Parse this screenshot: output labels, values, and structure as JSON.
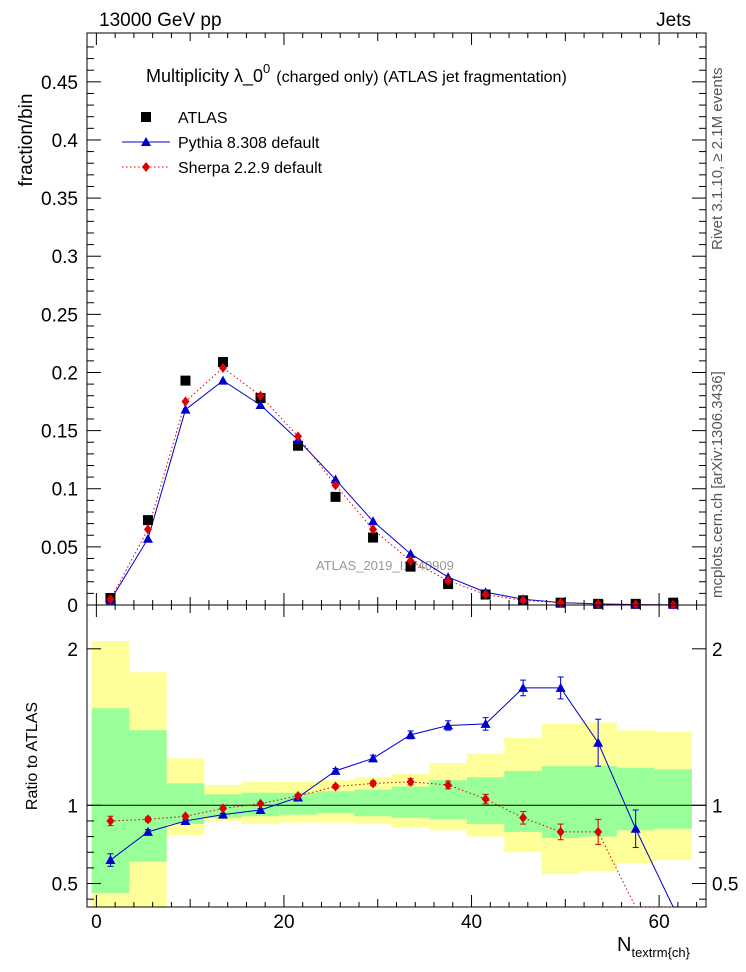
{
  "header": {
    "left": "13000 GeV pp",
    "right": "Jets"
  },
  "side_labels": {
    "top": "Rivet 3.1.10, ≥ 2.1M events",
    "bottom": "mcplots.cern.ch [arXiv:1306.3436]"
  },
  "chart_data": {
    "type": "scatter",
    "title_main": "Multiplicity  λ_0",
    "title_sup": "0",
    "title_suffix": "(charged only) (ATLAS jet fragmentation)",
    "watermark": "ATLAS_2019_I1740909",
    "xlabel_main": "N",
    "xlabel_sub": "textrm{ch}",
    "ylabel_top": "fraction/bin",
    "ylabel_bottom": "Ratio to ATLAS",
    "xlim": [
      -1,
      65
    ],
    "ylim_top": [
      0,
      0.492
    ],
    "ylim_bottom": [
      0.35,
      2.28
    ],
    "x_ticks": [
      0,
      20,
      40,
      60
    ],
    "x_tick_labels": [
      "0",
      "20",
      "40",
      "60"
    ],
    "y_ticks_top": [
      0,
      0.05,
      0.1,
      0.15,
      0.2,
      0.25,
      0.3,
      0.35,
      0.4,
      0.45
    ],
    "y_tick_labels_top": [
      "0",
      "0.05",
      "0.1",
      "0.15",
      "0.2",
      "0.25",
      "0.3",
      "0.35",
      "0.4",
      "0.45"
    ],
    "y_ticks_bottom": [
      0.5,
      1,
      2
    ],
    "y_tick_labels_bottom": [
      "0.5",
      "1",
      "2"
    ],
    "bin_edges": [
      -0.5,
      3.5,
      7.5,
      11.5,
      15.5,
      19.5,
      23.5,
      27.5,
      31.5,
      35.5,
      39.5,
      43.5,
      47.5,
      51.5,
      55.5,
      59.5,
      63.5
    ],
    "x": [
      1.5,
      5.5,
      9.5,
      13.5,
      17.5,
      21.5,
      25.5,
      29.5,
      33.5,
      37.5,
      41.5,
      45.5,
      49.5,
      53.5,
      57.5,
      61.5
    ],
    "legend": {
      "placement": "top-left",
      "entries": [
        "ATLAS",
        "Pythia 8.308 default",
        "Sherpa 2.2.9 default"
      ]
    },
    "series": [
      {
        "name": "ATLAS",
        "color": "#000000",
        "marker": "square",
        "values": [
          0.006,
          0.073,
          0.193,
          0.209,
          0.178,
          0.137,
          0.093,
          0.058,
          0.033,
          0.018,
          0.009,
          0.004,
          0.002,
          0.001,
          0.001,
          0.002
        ]
      },
      {
        "name": "Pythia 8.308 default",
        "color": "#0000cc",
        "marker": "triangle",
        "line": "solid",
        "values": [
          0.004,
          0.057,
          0.168,
          0.193,
          0.172,
          0.142,
          0.108,
          0.072,
          0.044,
          0.024,
          0.011,
          0.005,
          0.002,
          0.001,
          0.0003,
          0.0001
        ],
        "ratio": [
          0.65,
          0.83,
          0.9,
          0.94,
          0.97,
          1.05,
          1.22,
          1.3,
          1.45,
          1.51,
          1.52,
          1.75,
          1.75,
          1.4,
          0.85,
          0.2
        ],
        "ratio_err": [
          0.04,
          0.015,
          0.01,
          0.008,
          0.008,
          0.01,
          0.015,
          0.02,
          0.025,
          0.03,
          0.04,
          0.05,
          0.07,
          0.15,
          0.12,
          0
        ]
      },
      {
        "name": "Sherpa 2.2.9 default",
        "color": "#dd0000",
        "marker": "diamond",
        "line": "dotted",
        "values": [
          0.005,
          0.065,
          0.175,
          0.204,
          0.18,
          0.145,
          0.103,
          0.065,
          0.038,
          0.021,
          0.009,
          0.004,
          0.002,
          0.001,
          0.0004,
          0.0002
        ],
        "ratio": [
          0.9,
          0.91,
          0.93,
          0.98,
          1.01,
          1.06,
          1.12,
          1.14,
          1.15,
          1.13,
          1.04,
          0.92,
          0.83,
          0.83,
          0.3,
          0.1
        ],
        "ratio_err": [
          0.03,
          0.015,
          0.01,
          0.008,
          0.008,
          0.01,
          0.012,
          0.015,
          0.02,
          0.025,
          0.03,
          0.04,
          0.05,
          0.08,
          0.1,
          0
        ]
      }
    ],
    "bands": {
      "stat_color": "#99ff99",
      "total_color": "#ffff99",
      "total_lo": [
        0.35,
        0.35,
        0.81,
        0.9,
        0.88,
        0.89,
        0.89,
        0.88,
        0.86,
        0.84,
        0.8,
        0.7,
        0.56,
        0.58,
        0.63,
        0.65
      ],
      "total_hi": [
        2.05,
        1.85,
        1.3,
        1.13,
        1.15,
        1.15,
        1.16,
        1.18,
        1.2,
        1.27,
        1.33,
        1.43,
        1.52,
        1.53,
        1.48,
        1.47
      ],
      "stat_lo": [
        0.44,
        0.64,
        0.88,
        0.92,
        0.93,
        0.94,
        0.95,
        0.93,
        0.92,
        0.91,
        0.88,
        0.83,
        0.79,
        0.8,
        0.84,
        0.85
      ],
      "stat_hi": [
        1.62,
        1.48,
        1.14,
        1.07,
        1.08,
        1.08,
        1.09,
        1.1,
        1.12,
        1.16,
        1.18,
        1.22,
        1.25,
        1.25,
        1.24,
        1.23
      ]
    }
  }
}
